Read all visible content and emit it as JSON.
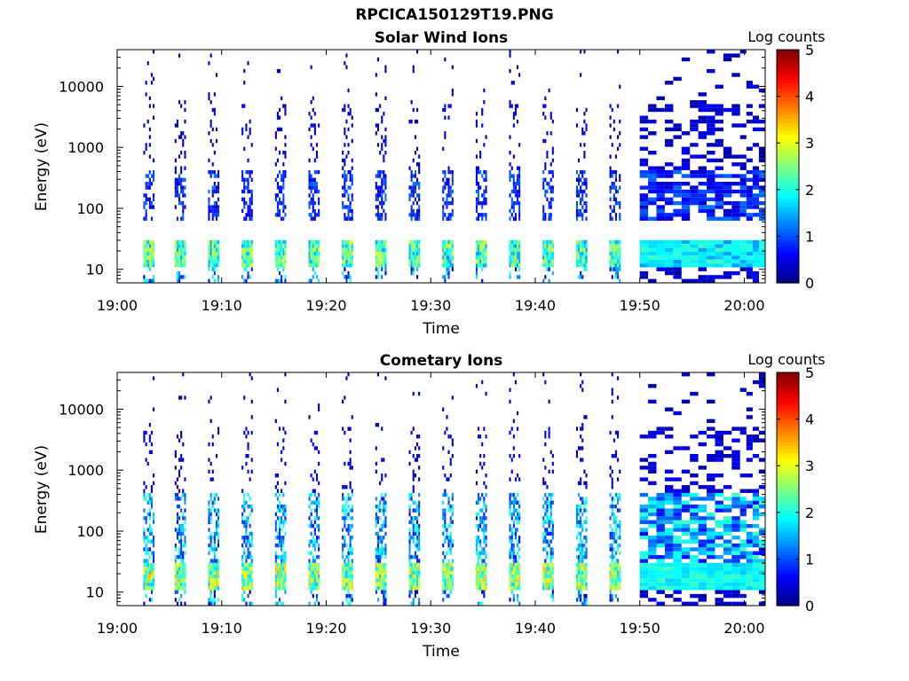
{
  "figure": {
    "title": "RPCICA150129T19.PNG"
  },
  "chart_data": [
    {
      "type": "heatmap",
      "title": "Solar Wind Ions",
      "xlabel": "Time",
      "ylabel": "Energy (eV)",
      "x_ticks": [
        "19:00",
        "19:10",
        "19:20",
        "19:30",
        "19:40",
        "19:50",
        "20:00"
      ],
      "x_range": [
        "19:00",
        "20:02"
      ],
      "y_scale": "log",
      "y_ticks": [
        "10",
        "100",
        "1000",
        "10000"
      ],
      "y_range": [
        6,
        40000
      ],
      "colorbar": {
        "label": "Log counts",
        "ticks": [
          "0",
          "1",
          "2",
          "3",
          "4",
          "5"
        ],
        "range": [
          0,
          5
        ]
      },
      "colormap": "jet",
      "sweep_start_minutes": [
        2.5,
        5.5,
        8.7,
        11.9,
        15.1,
        18.3,
        21.5,
        24.7,
        27.9,
        31.1,
        34.3,
        37.5,
        40.7,
        43.9,
        47.1
      ],
      "sweeps": [
        {
          "start": 50.0,
          "duration": 3.2
        },
        {
          "start": 53.2,
          "duration": 3.2
        },
        {
          "start": 56.4,
          "duration": 3.2
        },
        {
          "start": 59.6,
          "duration": 2.4
        }
      ],
      "low_energy_band": {
        "energy_ev": [
          10,
          30
        ],
        "peak_log_counts": 3.0
      },
      "mid_energy_band": {
        "energy_ev": [
          60,
          400
        ],
        "peak_log_counts": 1.2
      }
    },
    {
      "type": "heatmap",
      "title": "Cometary Ions",
      "xlabel": "Time",
      "ylabel": "Energy (eV)",
      "x_ticks": [
        "19:00",
        "19:10",
        "19:20",
        "19:30",
        "19:40",
        "19:50",
        "20:00"
      ],
      "x_range": [
        "19:00",
        "20:02"
      ],
      "y_scale": "log",
      "y_ticks": [
        "10",
        "100",
        "1000",
        "10000"
      ],
      "y_range": [
        6,
        40000
      ],
      "colorbar": {
        "label": "Log counts",
        "ticks": [
          "0",
          "1",
          "2",
          "3",
          "4",
          "5"
        ],
        "range": [
          0,
          5
        ]
      },
      "colormap": "jet",
      "sweep_start_minutes": [
        2.5,
        5.5,
        8.7,
        11.9,
        15.1,
        18.3,
        21.5,
        24.7,
        27.9,
        31.1,
        34.3,
        37.5,
        40.7,
        43.9,
        47.1
      ],
      "sweeps": [
        {
          "start": 50.0,
          "duration": 3.2
        },
        {
          "start": 53.2,
          "duration": 3.2
        },
        {
          "start": 56.4,
          "duration": 3.2
        },
        {
          "start": 59.6,
          "duration": 2.4
        }
      ],
      "low_energy_band": {
        "energy_ev": [
          10,
          30
        ],
        "peak_log_counts": 3.5
      },
      "mid_energy_band": {
        "energy_ev": [
          30,
          400
        ],
        "peak_log_counts": 2.2
      }
    }
  ]
}
